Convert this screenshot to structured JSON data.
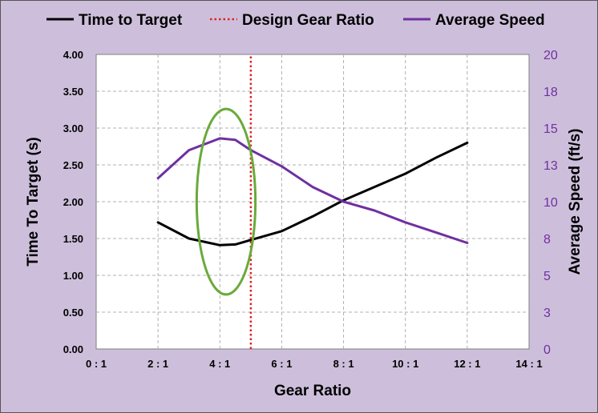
{
  "chart_data": {
    "type": "line",
    "xlabel": "Gear Ratio",
    "ylabel": "Time To Target (s)",
    "y2label": "Average Speed (ft/s)",
    "xlim": [
      0,
      14
    ],
    "ylim": [
      0,
      4
    ],
    "y2lim": [
      0,
      20
    ],
    "x_ticks": [
      0,
      2,
      4,
      6,
      8,
      10,
      12,
      14
    ],
    "x_tick_labels": [
      "0 : 1",
      "2 : 1",
      "4 : 1",
      "6 : 1",
      "8 : 1",
      "10 : 1",
      "12 : 1",
      "14 : 1"
    ],
    "y_ticks": [
      0,
      0.5,
      1,
      1.5,
      2,
      2.5,
      3,
      3.5,
      4
    ],
    "y_tick_labels": [
      "0.00",
      "0.50",
      "1.00",
      "1.50",
      "2.00",
      "2.50",
      "3.00",
      "3.50",
      "4.00"
    ],
    "y2_ticks": [
      0,
      2.5,
      5,
      7.5,
      10,
      12.5,
      15,
      17.5,
      20
    ],
    "y2_tick_labels": [
      "0",
      "3",
      "5",
      "8",
      "10",
      "13",
      "15",
      "18",
      "20"
    ],
    "grid": true,
    "legend_position": "top",
    "series": [
      {
        "name": "Time to Target",
        "axis": "left",
        "color": "#000000",
        "x": [
          2,
          3,
          4,
          4.5,
          5,
          6,
          7,
          8,
          9,
          10,
          11,
          12
        ],
        "values": [
          1.72,
          1.5,
          1.41,
          1.42,
          1.48,
          1.6,
          1.8,
          2.02,
          2.2,
          2.38,
          2.6,
          2.8
        ]
      },
      {
        "name": "Design Gear Ratio",
        "axis": "left",
        "color": "#e02020",
        "style": "dotted",
        "x": [
          5,
          5
        ],
        "values": [
          0,
          4
        ]
      },
      {
        "name": "Average Speed",
        "axis": "right",
        "color": "#7030a0",
        "x": [
          2,
          3,
          4,
          4.5,
          5,
          6,
          7,
          8,
          9,
          10,
          11,
          12
        ],
        "values": [
          11.6,
          13.5,
          14.3,
          14.2,
          13.5,
          12.4,
          11.0,
          10.0,
          9.4,
          8.6,
          7.9,
          7.2
        ]
      }
    ],
    "annotations": [
      {
        "type": "ellipse",
        "color": "#6aaa3a",
        "cx": 4.2,
        "cy": 2.0,
        "rx": 0.95,
        "ry": 1.26
      }
    ]
  }
}
